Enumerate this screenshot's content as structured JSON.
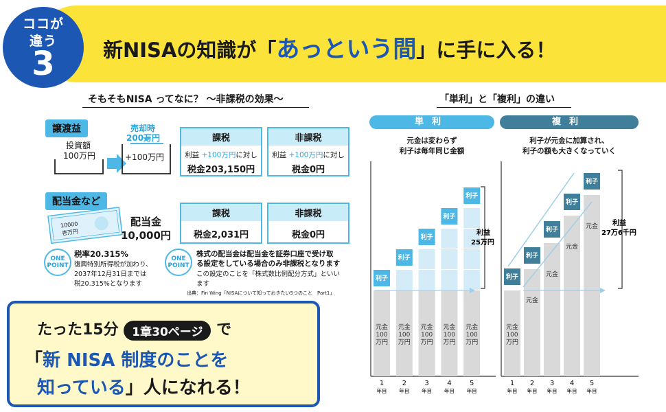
{
  "header": {
    "badge_line1": "ココが",
    "badge_line2": "違う",
    "badge_number": "3",
    "headline_pre": "新NISAの知識が「",
    "headline_highlight": "あっという間",
    "headline_post": "」に手に入る！"
  },
  "left": {
    "title": "そもそもNISA ってなに？ 〜非課税の効果〜",
    "transfer": {
      "tag": "譲渡益",
      "invest_label": "投資額",
      "invest_amount": "100万円",
      "sale_label": "売却時",
      "sale_amount": "200万円",
      "gain": "+100万円",
      "taxed": {
        "head": "課税",
        "note_pre": "利益 ",
        "note_blue": "+100万円",
        "note_post": "に対し",
        "value": "税金203,150円"
      },
      "untaxed": {
        "head": "非課税",
        "note_pre": "利益 ",
        "note_blue": "+100万円",
        "note_post": "に対し",
        "value": "税金0円"
      }
    },
    "dividend": {
      "tag": "配当金など",
      "bill_text1": "10000",
      "bill_text2": "壱万円",
      "label": "配当金",
      "amount": "10,000円",
      "taxed": {
        "head": "課税",
        "value": "税金2,031円"
      },
      "untaxed": {
        "head": "非課税",
        "value": "税金0円"
      }
    },
    "onepoint_label1": "ONE",
    "onepoint_label2": "POINT",
    "point1": {
      "title": "税率20.315%",
      "lines": [
        "復興特別所得税が加わり、",
        "2037年12月31日までは",
        "税20.315%となります"
      ]
    },
    "point2": {
      "lines": [
        "株式の配当金は配当金を証券口座で受け取",
        "る設定をしている場合のみ非課税となります",
        "この設定のことを「株式数比例配分方式」といい",
        "ます"
      ]
    },
    "source": "出典：Fin Wing「NISAについて知っておきたい5つのこと　Part1」"
  },
  "callout": {
    "line1_pre": "たった15分",
    "line1_pill": "1章30ページ",
    "line1_post": "で",
    "line2_open": "「",
    "line2_blue": "新 NISA 制度のことを",
    "line3_blue": "知っている",
    "line3_post": "」人になれる！"
  },
  "right": {
    "title": "「単利」と「複利」の違い",
    "simple": {
      "banner": "単利",
      "desc1": "元金は変わらず",
      "desc2": "利子は毎年同じ金額",
      "profit_label": "利益",
      "profit_value": "25万円"
    },
    "compound": {
      "banner": "複利",
      "desc1": "利子が元金に加算され、",
      "desc2": "利子の額も大きくなっていく",
      "profit_label": "利益",
      "profit_value": "27万6千円"
    },
    "interest_label": "利子",
    "principal_label": "元金",
    "principal_full": [
      "元金",
      "100",
      "万円"
    ],
    "years": [
      "1",
      "2",
      "3",
      "4",
      "5"
    ],
    "year_unit": "年目",
    "colors": {
      "simple_banner": "#4db8e6",
      "compound_banner": "#3f7f99"
    }
  }
}
